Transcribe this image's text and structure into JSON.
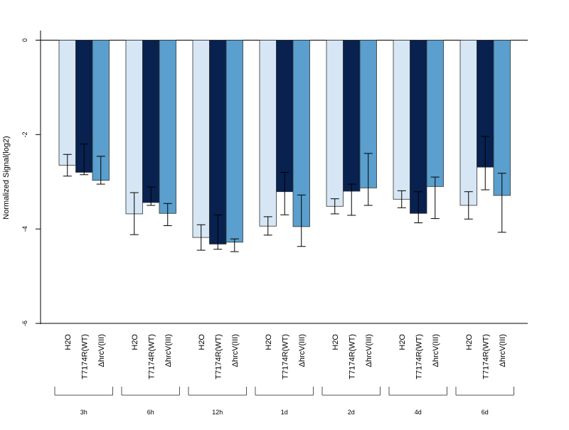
{
  "chart_data": {
    "type": "bar",
    "ylabel": "Normalized Signal(log2)",
    "ylim": [
      -6,
      0
    ],
    "yticks": [
      0,
      -2,
      -4,
      -6
    ],
    "grid": false,
    "legend": "none",
    "groups": [
      "3h",
      "6h",
      "12h",
      "1d",
      "2d",
      "4d",
      "6d"
    ],
    "series": [
      {
        "name": "H2O",
        "color": "#d6e6f4",
        "values": [
          -2.65,
          -3.68,
          -4.18,
          -3.94,
          -3.52,
          -3.37,
          -3.5
        ],
        "err_low": [
          -2.88,
          -4.12,
          -4.45,
          -4.13,
          -3.68,
          -3.55,
          -3.79
        ],
        "err_high": [
          -2.42,
          -3.23,
          -3.91,
          -3.74,
          -3.36,
          -3.19,
          -3.21
        ]
      },
      {
        "name": "T7174R(WT)",
        "color": "#08214f",
        "values": [
          -2.8,
          -3.44,
          -4.32,
          -3.21,
          -3.2,
          -3.67,
          -2.69
        ],
        "err_low": [
          -2.85,
          -3.5,
          -4.43,
          -3.7,
          -3.71,
          -3.87,
          -3.17
        ],
        "err_high": [
          -2.2,
          -3.11,
          -3.7,
          -2.8,
          -3.05,
          -3.21,
          -2.04
        ]
      },
      {
        "name": "ΔhrcV(III)",
        "color": "#5a9fcd",
        "values": [
          -2.97,
          -3.67,
          -4.28,
          -3.95,
          -3.13,
          -3.1,
          -3.29
        ],
        "err_low": [
          -3.05,
          -3.93,
          -4.48,
          -4.37,
          -3.5,
          -3.78,
          -4.07
        ],
        "err_high": [
          -2.46,
          -3.46,
          -4.21,
          -3.28,
          -2.4,
          -2.9,
          -2.82
        ]
      }
    ]
  }
}
